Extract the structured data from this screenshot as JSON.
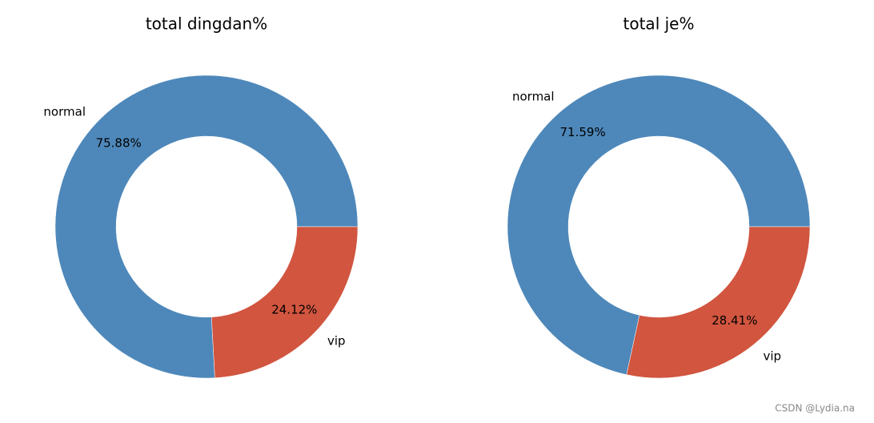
{
  "chart_data": [
    {
      "type": "donut",
      "title": "total dingdan%",
      "categories": [
        "normal",
        "vip"
      ],
      "values": [
        75.88,
        24.12
      ],
      "value_labels": [
        "75.88%",
        "24.12%"
      ],
      "colors": [
        "#4e88ba",
        "#d1553f"
      ]
    },
    {
      "type": "donut",
      "title": "total je%",
      "categories": [
        "normal",
        "vip"
      ],
      "values": [
        71.59,
        28.41
      ],
      "value_labels": [
        "71.59%",
        "28.41%"
      ],
      "colors": [
        "#4e88ba",
        "#d1553f"
      ]
    }
  ],
  "watermark": "CSDN @Lydia.na"
}
